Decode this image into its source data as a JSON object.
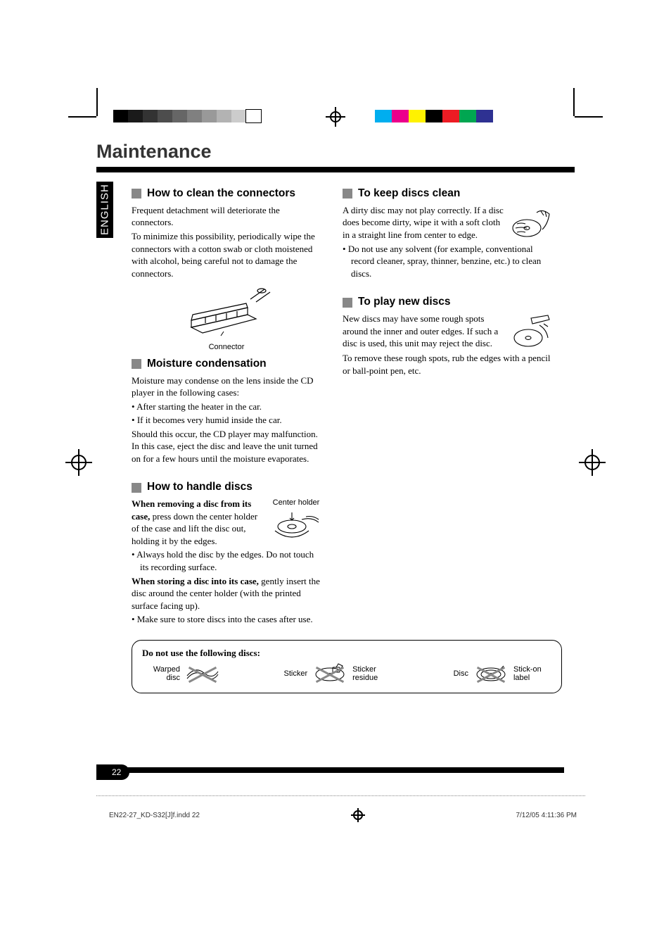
{
  "lang_tab": "ENGLISH",
  "title": "Maintenance",
  "page_number": "22",
  "footer_file": "EN22-27_KD-S32[J]f.indd   22",
  "footer_date": "7/12/05   4:11:36 PM",
  "gray_swatches": [
    "#000000",
    "#1a1a1a",
    "#333333",
    "#4d4d4d",
    "#666666",
    "#808080",
    "#999999",
    "#b3b3b3",
    "#cccccc",
    "#ffffff"
  ],
  "color_swatches": [
    "#00aeef",
    "#ec008c",
    "#fff200",
    "#000000",
    "#ed1c24",
    "#00a651",
    "#2e3192"
  ],
  "left": {
    "s1": {
      "heading": "How to clean the connectors",
      "p1": "Frequent detachment will deteriorate the connectors.",
      "p2": "To minimize this possibility, periodically wipe the connectors with a cotton swab or cloth moistened with alcohol, being careful not to damage the connectors.",
      "fig_caption": "Connector"
    },
    "s2": {
      "heading": "Moisture condensation",
      "p1": "Moisture may condense on the lens inside the CD player in the following cases:",
      "b1": "After starting the heater in the car.",
      "b2": "If it becomes very humid inside the car.",
      "p2": "Should this occur, the CD player may malfunction. In this case, eject the disc and leave the unit turned on for a few hours until the moisture evaporates."
    },
    "s3": {
      "heading": "How to handle discs",
      "strong1": "When removing a disc from its case,",
      "p1_rest": " press down the center holder of the case and lift the disc out, holding it by the edges.",
      "fig_caption": "Center holder",
      "b1": "Always hold the disc by the edges. Do not touch its recording surface.",
      "strong2": "When storing a disc into its case,",
      "p2_rest": " gently insert the disc around the center holder (with the printed surface facing up).",
      "b2": "Make sure to store discs into the cases after use."
    }
  },
  "right": {
    "s1": {
      "heading": "To keep discs clean",
      "p1": "A dirty disc may not play correctly. If a disc does become dirty, wipe it with a soft cloth in a straight line from center to edge.",
      "b1": "Do not use any solvent (for example, conventional record cleaner, spray, thinner, benzine, etc.) to clean discs."
    },
    "s2": {
      "heading": "To play new discs",
      "p1": "New discs may have some rough spots around the inner and outer edges. If such a disc is used, this unit may reject the disc.",
      "p2": "To remove these rough spots, rub the edges with a pencil or ball-point pen, etc."
    }
  },
  "notice": {
    "heading": "Do not use the following discs:",
    "items": {
      "warped": "Warped disc",
      "sticker": "Sticker",
      "residue": "Sticker residue",
      "disc": "Disc",
      "label": "Stick-on label"
    }
  }
}
